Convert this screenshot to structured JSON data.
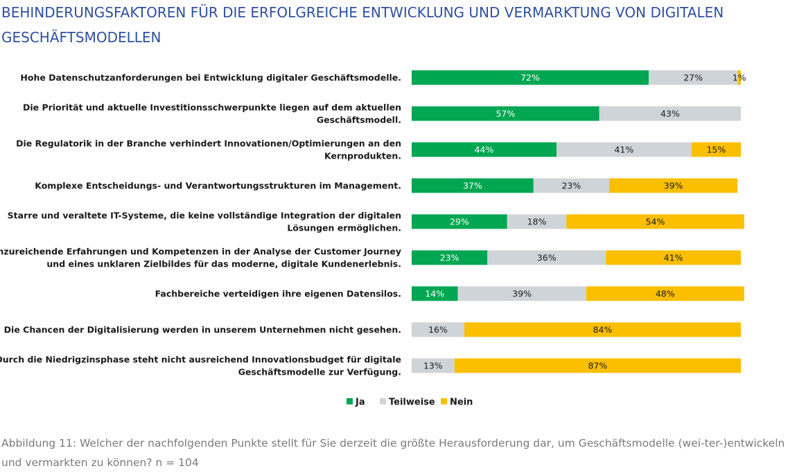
{
  "title": "BEHINDERUNGSFAKTOREN FÜR DIE ERFOLGREICHE ENTWICKLUNG UND VERMARKTUNG VON DIGITALEN GESCHÄFTSMODELLEN",
  "caption": "Abbildung 11: Welcher der nachfolgenden Punkte stellt für Sie derzeit die größte Herausforderung dar, um Geschäftsmodelle (wei-ter-)entwickeln und vermarkten zu können? n = 104",
  "chart_data": {
    "type": "bar",
    "orientation": "horizontal",
    "stacked": true,
    "xlim": [
      0,
      100
    ],
    "grid": false,
    "legend_position": "bottom",
    "categories": [
      [
        "Hohe Datenschutzanforderungen bei Entwicklung digitaler Geschäftsmodelle."
      ],
      [
        "Die Priorität und aktuelle Investitionsschwerpunkte liegen auf dem aktuellen",
        "Geschäftsmodell."
      ],
      [
        "Die Regulatorik in der Branche verhindert Innovationen/Optimierungen an den",
        "Kernprodukten."
      ],
      [
        "Komplexe Entscheidungs- und Verantwortungsstrukturen im Management."
      ],
      [
        "Starre und veraltete IT-Systeme, die keine vollständige Integration der digitalen",
        "Lösungen ermöglichen."
      ],
      [
        "Unzureichende Erfahrungen und Kompetenzen in der Analyse der Customer Journey",
        "und eines unklaren Zielbildes für das moderne, digitale Kundenerlebnis."
      ],
      [
        "Fachbereiche verteidigen ihre eigenen Datensilos."
      ],
      [
        "Die Chancen der Digitalisierung werden in unserem Unternehmen nicht gesehen."
      ],
      [
        "Durch die Niedrigzinsphase steht nicht ausreichend Innovationsbudget für digitale",
        "Geschäftsmodelle zur Verfügung."
      ]
    ],
    "series": [
      {
        "name": "Ja",
        "color": "#00a651",
        "label_color": "#ffffff",
        "values": [
          72,
          57,
          44,
          37,
          29,
          23,
          14,
          0,
          0
        ]
      },
      {
        "name": "Teilweise",
        "color": "#cfd4d9",
        "label_color": "#1a1a1a",
        "values": [
          27,
          43,
          41,
          23,
          18,
          36,
          39,
          16,
          13
        ]
      },
      {
        "name": "Nein",
        "color": "#fbbf00",
        "label_color": "#1a1a1a",
        "values": [
          1,
          0,
          15,
          39,
          54,
          41,
          48,
          84,
          87
        ]
      }
    ],
    "value_suffix": "%"
  }
}
